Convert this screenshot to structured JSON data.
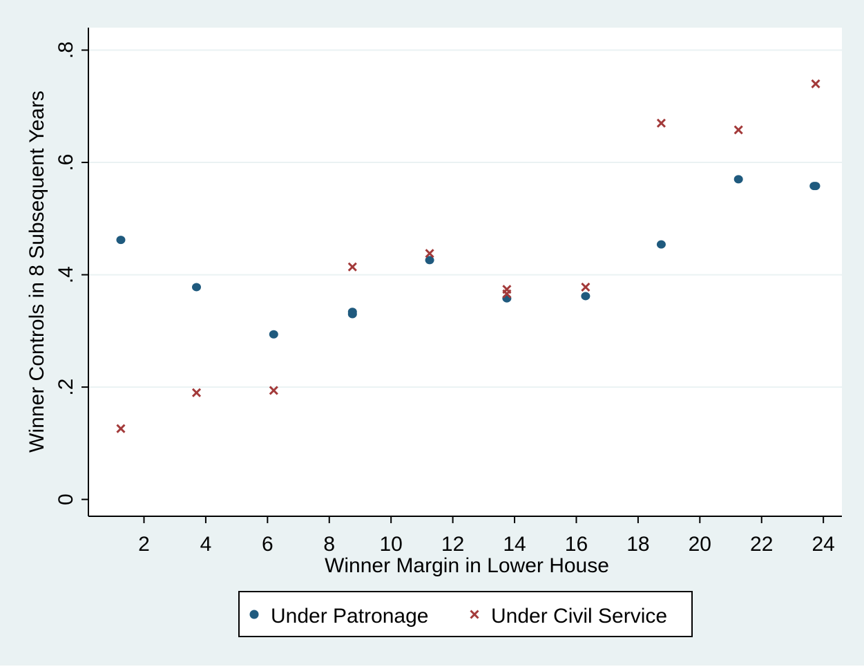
{
  "chart_data": {
    "type": "scatter",
    "title": "",
    "xlabel": "Winner Margin in Lower House",
    "ylabel": "Winner Controls in 8 Subsequent Years",
    "xlim": [
      0.2,
      24.6
    ],
    "ylim": [
      -0.03,
      0.84
    ],
    "x_ticks": [
      2,
      4,
      6,
      8,
      10,
      12,
      14,
      16,
      18,
      20,
      22,
      24
    ],
    "x_tick_labels": [
      "2",
      "4",
      "6",
      "8",
      "10",
      "12",
      "14",
      "16",
      "18",
      "20",
      "22",
      "24"
    ],
    "y_ticks": [
      0,
      0.2,
      0.4,
      0.6,
      0.8
    ],
    "y_tick_labels": [
      "0",
      ".2",
      ".4",
      ".6",
      ".8"
    ],
    "grid": "horizontal",
    "legend_position": "bottom",
    "series": [
      {
        "name": "Under Patronage",
        "marker": "circle",
        "color": "#1f5a7e",
        "x": [
          1.25,
          3.7,
          6.2,
          8.75,
          8.75,
          11.25,
          13.75,
          16.3,
          18.75,
          21.25,
          23.7,
          23.75
        ],
        "y": [
          0.462,
          0.378,
          0.294,
          0.334,
          0.33,
          0.426,
          0.358,
          0.362,
          0.454,
          0.57,
          0.558,
          0.558
        ]
      },
      {
        "name": "Under Civil Service",
        "marker": "x",
        "color": "#a33a3a",
        "x": [
          1.25,
          3.7,
          6.2,
          8.75,
          11.25,
          13.75,
          13.75,
          16.3,
          18.75,
          21.25,
          23.75
        ],
        "y": [
          0.126,
          0.19,
          0.194,
          0.414,
          0.438,
          0.374,
          0.366,
          0.378,
          0.67,
          0.658,
          0.74
        ]
      }
    ]
  },
  "colors": {
    "outer_background": "#eaf2f3",
    "plot_background": "#ffffff",
    "grid": "#eaf2f3"
  }
}
